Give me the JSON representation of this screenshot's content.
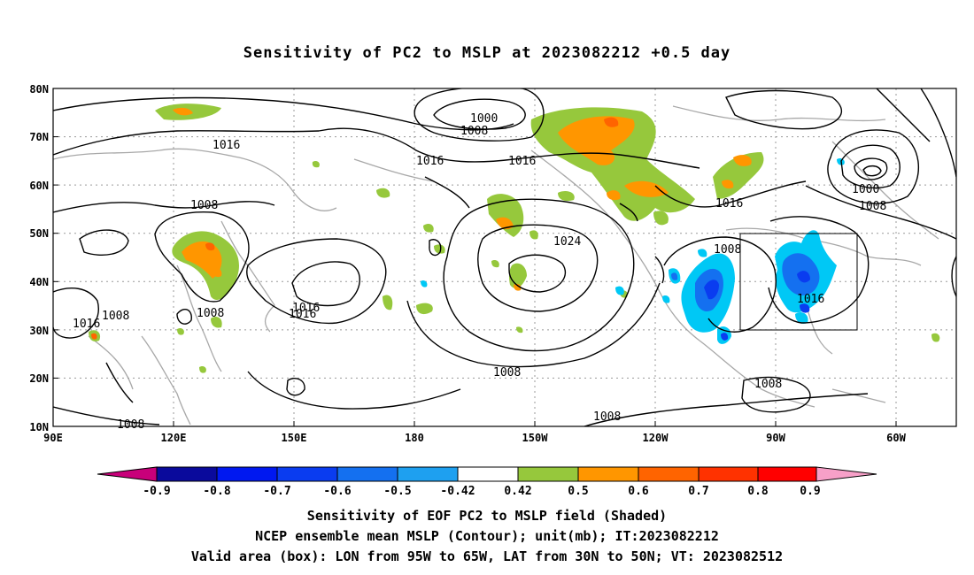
{
  "title": "Sensitivity of PC2 to MSLP at 2023082212 +0.5 day",
  "lat_labels": [
    "80N",
    "70N",
    "60N",
    "50N",
    "40N",
    "30N",
    "20N",
    "10N"
  ],
  "lon_labels": [
    "90E",
    "120E",
    "150E",
    "180",
    "150W",
    "120W",
    "90W",
    "60W"
  ],
  "contour_labels": [
    "1000",
    "1008",
    "1016",
    "1016",
    "1016",
    "1024",
    "1008",
    "1016",
    "1000",
    "1008",
    "1008",
    "1016",
    "1016",
    "1008",
    "1016",
    "1008",
    "1008",
    "1008",
    "1016",
    "1008",
    "1008"
  ],
  "colorbar": {
    "labels": [
      "-0.9",
      "-0.8",
      "-0.7",
      "-0.6",
      "-0.5",
      "-0.42",
      "0.42",
      "0.5",
      "0.6",
      "0.7",
      "0.8",
      "0.9"
    ],
    "colors": [
      "#c8007a",
      "#0a0a9c",
      "#0018f0",
      "#0a3cf0",
      "#1470f0",
      "#1ea0f0",
      "#00c8f5",
      "#ffffff",
      "#96c83c",
      "#ff9600",
      "#ff6400",
      "#ff3200",
      "#ff0000",
      "#f7a0c8"
    ]
  },
  "captions": [
    "Sensitivity of EOF PC2 to MSLP field (Shaded)",
    "NCEP ensemble mean MSLP (Contour); unit(mb); IT:2023082212",
    "Valid area (box): LON from 95W to 65W, LAT from 30N to 50N; VT: 2023082512"
  ]
}
